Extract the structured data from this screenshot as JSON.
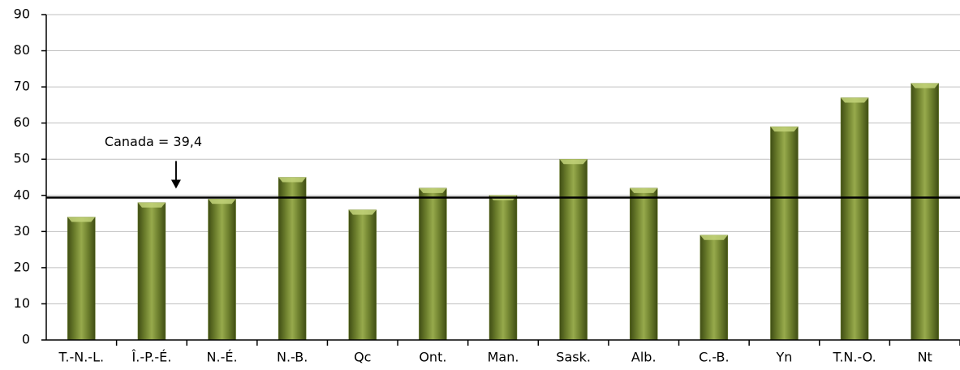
{
  "chart_data": {
    "type": "bar",
    "categories": [
      "T.-N.-L.",
      "Î.-P.-É.",
      "N.-É.",
      "N.-B.",
      "Qc",
      "Ont.",
      "Man.",
      "Sask.",
      "Alb.",
      "C.-B.",
      "Yn",
      "T.N.-O.",
      "Nt"
    ],
    "values": [
      34,
      38,
      39,
      45,
      36,
      42,
      40,
      50,
      42,
      29,
      59,
      67,
      71
    ],
    "color": "#6b7d2c",
    "ylim": [
      0,
      90
    ],
    "yticks": [
      0,
      10,
      20,
      30,
      40,
      50,
      60,
      70,
      80,
      90
    ],
    "grid": true,
    "reference_line": {
      "value": 39.4,
      "label": "Canada = 39,4"
    }
  }
}
